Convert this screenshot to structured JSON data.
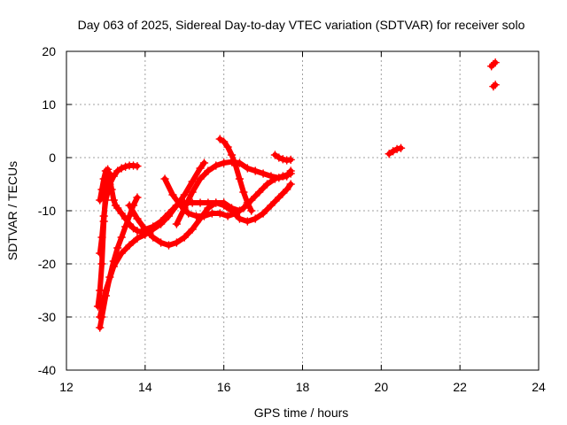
{
  "chart_data": {
    "type": "scatter",
    "title": "Day 063 of 2025, Sidereal Day-to-day VTEC variation (SDTVAR) for receiver solo",
    "xlabel": "GPS time / hours",
    "ylabel": "SDTVAR / TECUs",
    "xlim": [
      12,
      24
    ],
    "ylim": [
      -40,
      20
    ],
    "xticks": [
      "12",
      "14",
      "16",
      "18",
      "20",
      "22",
      "24"
    ],
    "yticks": [
      "-40",
      "-30",
      "-20",
      "-10",
      "0",
      "10",
      "20"
    ],
    "grid": true,
    "marker": "plus",
    "color": "#ff0000",
    "series": [
      {
        "x": [
          12.85,
          12.9,
          12.95,
          13.0,
          13.05,
          13.1,
          13.15,
          13.2,
          13.25,
          13.3,
          13.4,
          13.5,
          13.6,
          13.7,
          13.8,
          13.9
        ],
        "y": [
          -8,
          -6,
          -4,
          -2.5,
          -2.2,
          -4,
          -6,
          -8,
          -9,
          -9.5,
          -10.5,
          -11.5,
          -12.5,
          -13.3,
          -13.8,
          -14
        ]
      },
      {
        "x": [
          12.85,
          12.9,
          12.95,
          13.0,
          13.1,
          13.2,
          13.3,
          13.4,
          13.5,
          13.6,
          13.7,
          13.8
        ],
        "y": [
          -18,
          -15,
          -11,
          -8,
          -5,
          -3.5,
          -2.5,
          -2,
          -1.7,
          -1.5,
          -1.5,
          -1.6
        ]
      },
      {
        "x": [
          12.8,
          12.85,
          12.9,
          12.95,
          13.0,
          13.05,
          13.1
        ],
        "y": [
          -28,
          -25,
          -20,
          -12,
          -6,
          -4,
          -3
        ]
      },
      {
        "x": [
          12.85,
          12.9,
          13.0,
          13.1,
          13.2,
          13.3,
          13.4,
          13.5,
          13.6,
          13.7,
          13.8
        ],
        "y": [
          -32,
          -30,
          -26,
          -22.5,
          -19.5,
          -17,
          -15,
          -13,
          -11,
          -9,
          -7.5
        ]
      },
      {
        "x": [
          12.85,
          13.0,
          13.2,
          13.4,
          13.6,
          13.8,
          14.0,
          14.2,
          14.4,
          14.6,
          14.8,
          15.0,
          15.2,
          15.4,
          15.5
        ],
        "y": [
          -30,
          -25,
          -20.5,
          -18,
          -16.5,
          -15.2,
          -14.5,
          -13.5,
          -12.5,
          -11,
          -9,
          -7,
          -4.5,
          -2,
          -1
        ]
      },
      {
        "x": [
          13.6,
          13.8,
          14.0,
          14.2,
          14.4,
          14.6,
          14.8,
          15.0,
          15.2,
          15.4,
          15.6,
          15.8,
          16.0,
          16.2,
          16.4
        ],
        "y": [
          -9,
          -11.5,
          -13.5,
          -15,
          -16,
          -16.5,
          -16,
          -15,
          -13.5,
          -11.5,
          -9.5,
          -8.5,
          -8.5,
          -9.5,
          -10
        ]
      },
      {
        "x": [
          13.9,
          14.0,
          14.2,
          14.4,
          14.6,
          14.8,
          15.0,
          15.2,
          15.4,
          15.6,
          15.8,
          16.0,
          16.2,
          16.4,
          16.6,
          16.8,
          17.0,
          17.2,
          17.4,
          17.6,
          17.7
        ],
        "y": [
          -14,
          -13.5,
          -13,
          -12,
          -10.5,
          -9,
          -8.5,
          -8.5,
          -8.5,
          -8.5,
          -8.5,
          -9,
          -10,
          -11.5,
          -12,
          -11.5,
          -10.5,
          -9,
          -7.5,
          -6,
          -5
        ]
      },
      {
        "x": [
          14.5,
          14.7,
          14.9,
          15.1,
          15.3,
          15.5,
          15.7,
          15.9,
          16.1,
          16.3,
          16.5,
          16.7,
          16.9,
          17.1,
          17.3,
          17.5,
          17.7
        ],
        "y": [
          -4,
          -7,
          -9,
          -10.5,
          -11,
          -11,
          -10.5,
          -10.5,
          -11,
          -10.5,
          -9.5,
          -8,
          -6.5,
          -5,
          -4,
          -3.5,
          -3
        ]
      },
      {
        "x": [
          14.8,
          15.0,
          15.2,
          15.4,
          15.6,
          15.8,
          16.0,
          16.2,
          16.4,
          16.6,
          16.8,
          17.0,
          17.2,
          17.4,
          17.6,
          17.7
        ],
        "y": [
          -12.5,
          -9.5,
          -6.5,
          -4,
          -2.5,
          -1.5,
          -1,
          -0.8,
          -1,
          -2,
          -2.5,
          -3,
          -3.5,
          -3.8,
          -3.5,
          -2.5
        ]
      },
      {
        "x": [
          15.9,
          16.0,
          16.1,
          16.2,
          16.3,
          16.4,
          16.5,
          16.6,
          16.7
        ],
        "y": [
          3.5,
          3,
          2,
          0.5,
          -1.5,
          -4,
          -6.5,
          -8.5,
          -10
        ]
      },
      {
        "x": [
          17.3,
          17.4,
          17.5,
          17.6,
          17.7
        ],
        "y": [
          0.5,
          0,
          -0.3,
          -0.5,
          -0.4
        ]
      },
      {
        "x": [
          20.2,
          20.3,
          20.4,
          20.5
        ],
        "y": [
          0.7,
          1.2,
          1.6,
          1.8
        ]
      },
      {
        "x": [
          22.8,
          22.85,
          22.9
        ],
        "y": [
          17.2,
          17.6,
          17.9
        ]
      },
      {
        "x": [
          22.85,
          22.9
        ],
        "y": [
          13.4,
          13.7
        ]
      }
    ]
  }
}
